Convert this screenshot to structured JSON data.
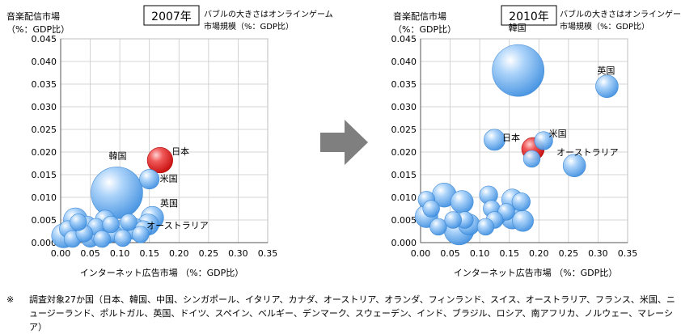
{
  "chart_data": [
    {
      "type": "scatter",
      "title": "2007年",
      "ylabel_line1": "音楽配信市場",
      "ylabel_line2": "（%：GDP比）",
      "bubble_note_line1": "バブルの大きさはオンラインゲーム",
      "bubble_note_line2": "市場規模（%：GDP比）",
      "xlabel": "インターネット広告市場 （%：GDP比）",
      "xlim": [
        0,
        0.35
      ],
      "ylim": [
        0,
        0.045
      ],
      "x_ticks": [
        "0.00",
        "0.05",
        "0.10",
        "0.15",
        "0.20",
        "0.25",
        "0.30",
        "0.35"
      ],
      "y_ticks": [
        "0.000",
        "0.005",
        "0.010",
        "0.015",
        "0.020",
        "0.025",
        "0.030",
        "0.035",
        "0.040",
        "0.045"
      ],
      "grid": true,
      "points": [
        {
          "x": 0.168,
          "y": 0.0182,
          "size": 0.6,
          "label": "日本",
          "highlight": true
        },
        {
          "x": 0.095,
          "y": 0.011,
          "size": 1.5,
          "label": "韓国"
        },
        {
          "x": 0.15,
          "y": 0.014,
          "size": 0.4,
          "label": "米国"
        },
        {
          "x": 0.155,
          "y": 0.0055,
          "size": 0.5,
          "label": "英国"
        },
        {
          "x": 0.148,
          "y": 0.004,
          "size": 0.45,
          "label": "オーストラリア"
        },
        {
          "x": 0.025,
          "y": 0.005,
          "size": 0.55
        },
        {
          "x": 0.035,
          "y": 0.003,
          "size": 0.6
        },
        {
          "x": 0.005,
          "y": 0.0015,
          "size": 0.55
        },
        {
          "x": 0.045,
          "y": 0.004,
          "size": 0.3
        },
        {
          "x": 0.075,
          "y": 0.005,
          "size": 0.4
        },
        {
          "x": 0.08,
          "y": 0.002,
          "size": 0.4
        },
        {
          "x": 0.1,
          "y": 0.003,
          "size": 0.3
        },
        {
          "x": 0.125,
          "y": 0.003,
          "size": 0.45
        },
        {
          "x": 0.115,
          "y": 0.0045,
          "size": 0.3
        },
        {
          "x": 0.05,
          "y": 0.001,
          "size": 0.35
        },
        {
          "x": 0.065,
          "y": 0.0015,
          "size": 0.3
        },
        {
          "x": 0.09,
          "y": 0.002,
          "size": 0.3
        },
        {
          "x": 0.105,
          "y": 0.001,
          "size": 0.3
        },
        {
          "x": 0.14,
          "y": 0.003,
          "size": 0.3
        },
        {
          "x": 0.012,
          "y": 0.003,
          "size": 0.3
        },
        {
          "x": 0.06,
          "y": 0.0035,
          "size": 0.3
        },
        {
          "x": 0.02,
          "y": 0.0008,
          "size": 0.3
        },
        {
          "x": 0.04,
          "y": 0.002,
          "size": 0.3
        },
        {
          "x": 0.085,
          "y": 0.004,
          "size": 0.3
        },
        {
          "x": 0.135,
          "y": 0.0018,
          "size": 0.3
        },
        {
          "x": 0.07,
          "y": 0.0008,
          "size": 0.3
        },
        {
          "x": 0.03,
          "y": 0.0045,
          "size": 0.3
        }
      ]
    },
    {
      "type": "scatter",
      "title": "2010年",
      "ylabel_line1": "音楽配信市場",
      "ylabel_line2": "（%：GDP比）",
      "bubble_note_line1": "バブルの大きさはオンラインゲーム",
      "bubble_note_line2": "市場規模（%：GDP比）",
      "xlabel": "インターネット広告市場 （%：GDP比）",
      "xlim": [
        0,
        0.35
      ],
      "ylim": [
        0,
        0.045
      ],
      "x_ticks": [
        "0.00",
        "0.05",
        "0.10",
        "0.15",
        "0.20",
        "0.25",
        "0.30",
        "0.35"
      ],
      "y_ticks": [
        "0.000",
        "0.005",
        "0.010",
        "0.015",
        "0.020",
        "0.025",
        "0.030",
        "0.035",
        "0.040",
        "0.045"
      ],
      "grid": true,
      "points": [
        {
          "x": 0.165,
          "y": 0.038,
          "size": 1.5,
          "label": "韓国"
        },
        {
          "x": 0.315,
          "y": 0.0345,
          "size": 0.5,
          "label": "英国"
        },
        {
          "x": 0.19,
          "y": 0.0207,
          "size": 0.5,
          "label": "日本",
          "highlight": true
        },
        {
          "x": 0.208,
          "y": 0.0225,
          "size": 0.35,
          "label": "米国"
        },
        {
          "x": 0.26,
          "y": 0.017,
          "size": 0.5,
          "label": "オーストラリア"
        },
        {
          "x": 0.125,
          "y": 0.0227,
          "size": 0.45
        },
        {
          "x": 0.188,
          "y": 0.0185,
          "size": 0.3
        },
        {
          "x": 0.04,
          "y": 0.0105,
          "size": 0.55
        },
        {
          "x": 0.07,
          "y": 0.009,
          "size": 0.5
        },
        {
          "x": 0.115,
          "y": 0.0105,
          "size": 0.35
        },
        {
          "x": 0.155,
          "y": 0.0095,
          "size": 0.45
        },
        {
          "x": 0.17,
          "y": 0.009,
          "size": 0.35
        },
        {
          "x": 0.01,
          "y": 0.0095,
          "size": 0.3
        },
        {
          "x": 0.01,
          "y": 0.0058,
          "size": 0.5
        },
        {
          "x": 0.018,
          "y": 0.0075,
          "size": 0.3
        },
        {
          "x": 0.065,
          "y": 0.0028,
          "size": 0.75
        },
        {
          "x": 0.082,
          "y": 0.004,
          "size": 0.45
        },
        {
          "x": 0.075,
          "y": 0.005,
          "size": 0.3
        },
        {
          "x": 0.155,
          "y": 0.0055,
          "size": 0.5
        },
        {
          "x": 0.173,
          "y": 0.0048,
          "size": 0.45
        },
        {
          "x": 0.13,
          "y": 0.0058,
          "size": 0.3
        },
        {
          "x": 0.12,
          "y": 0.0075,
          "size": 0.3
        },
        {
          "x": 0.145,
          "y": 0.0068,
          "size": 0.3
        },
        {
          "x": 0.03,
          "y": 0.0035,
          "size": 0.3
        },
        {
          "x": 0.125,
          "y": 0.005,
          "size": 0.3
        },
        {
          "x": 0.055,
          "y": 0.005,
          "size": 0.3
        },
        {
          "x": 0.11,
          "y": 0.0035,
          "size": 0.3
        }
      ]
    }
  ],
  "footnote": {
    "mark": "※",
    "text": "調査対象27か国（日本、韓国、中国、シンガポール、イタリア、カナダ、オーストリア、オランダ、フィンランド、スイス、オーストラリア、フランス、米国、ニュージーランド、ポルトガル、英国、ドイツ、スペイン、ベルギー、デンマーク、スウェーデン、インド、ブラジル、ロシア、南アフリカ、ノルウェー、マレーシア）"
  },
  "colors": {
    "bubble": "#5aa6ef",
    "bubble_highlight": "#e21b1b",
    "grid": "#c8c8c8",
    "arrow": "#7f7f7f"
  }
}
